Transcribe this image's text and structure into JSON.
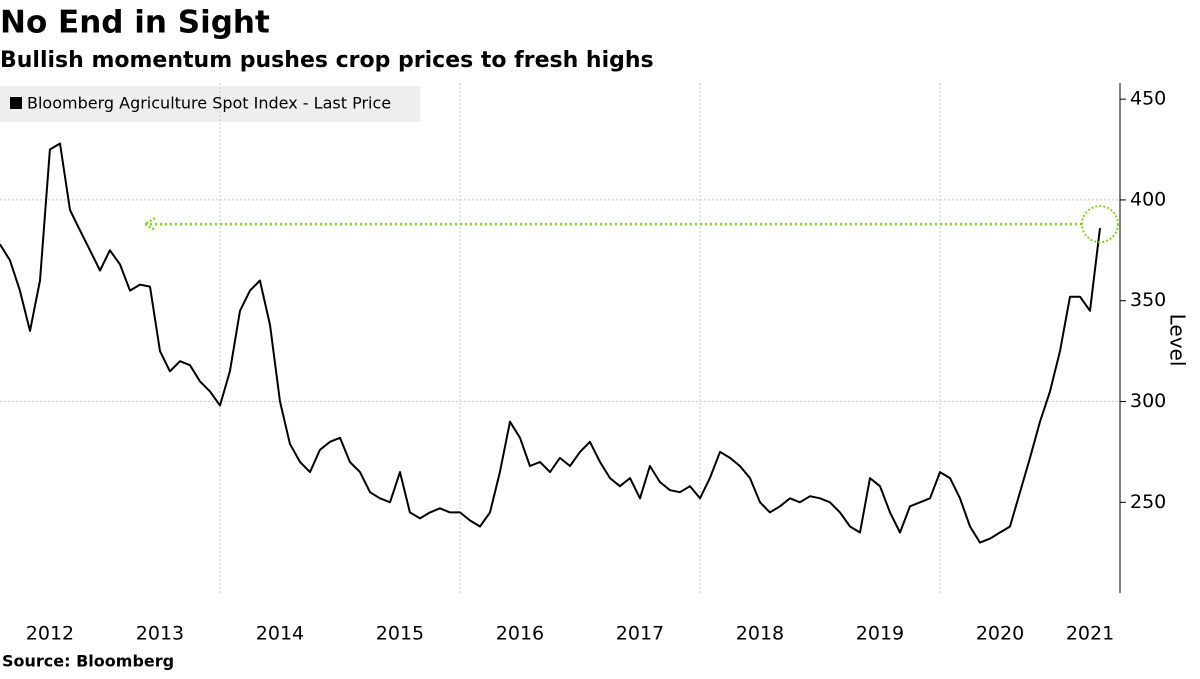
{
  "chart_data": {
    "type": "line",
    "title": "No End in Sight",
    "subtitle": "Bullish momentum pushes crop prices to fresh highs",
    "y_label": "Level",
    "source": "Source: Bloomberg",
    "x": [
      2012.167,
      2012.25,
      2012.333,
      2012.417,
      2012.5,
      2012.583,
      2012.667,
      2012.75,
      2012.833,
      2012.917,
      2013.0,
      2013.083,
      2013.167,
      2013.25,
      2013.333,
      2013.417,
      2013.5,
      2013.583,
      2013.667,
      2013.75,
      2013.833,
      2013.917,
      2014.0,
      2014.083,
      2014.167,
      2014.25,
      2014.333,
      2014.417,
      2014.5,
      2014.583,
      2014.667,
      2014.75,
      2014.833,
      2014.917,
      2015.0,
      2015.083,
      2015.167,
      2015.25,
      2015.333,
      2015.417,
      2015.5,
      2015.583,
      2015.667,
      2015.75,
      2015.833,
      2015.917,
      2016.0,
      2016.083,
      2016.167,
      2016.25,
      2016.333,
      2016.417,
      2016.5,
      2016.583,
      2016.667,
      2016.75,
      2016.833,
      2016.917,
      2017.0,
      2017.083,
      2017.167,
      2017.25,
      2017.333,
      2017.417,
      2017.5,
      2017.583,
      2017.667,
      2017.75,
      2017.833,
      2017.917,
      2018.0,
      2018.083,
      2018.167,
      2018.25,
      2018.333,
      2018.417,
      2018.5,
      2018.583,
      2018.667,
      2018.75,
      2018.833,
      2018.917,
      2019.0,
      2019.083,
      2019.167,
      2019.25,
      2019.333,
      2019.417,
      2019.5,
      2019.583,
      2019.667,
      2019.75,
      2019.833,
      2019.917,
      2020.0,
      2020.083,
      2020.167,
      2020.25,
      2020.333,
      2020.417,
      2020.5,
      2020.583,
      2020.667,
      2020.75,
      2020.833,
      2020.917,
      2021.0,
      2021.083,
      2021.167,
      2021.25,
      2021.333
    ],
    "series": [
      {
        "name": "Bloomberg Agriculture Spot Index - Last Price",
        "color": "#000000",
        "values": [
          378,
          370,
          355,
          335,
          360,
          425,
          428,
          395,
          385,
          375,
          365,
          375,
          368,
          355,
          358,
          357,
          325,
          315,
          320,
          318,
          310,
          305,
          298,
          315,
          345,
          355,
          360,
          338,
          300,
          279,
          270,
          265,
          276,
          280,
          282,
          270,
          265,
          255,
          252,
          250,
          265,
          245,
          242,
          245,
          247,
          245,
          245,
          241,
          238,
          245,
          265,
          290,
          282,
          268,
          270,
          265,
          272,
          268,
          275,
          280,
          270,
          262,
          258,
          262,
          252,
          268,
          260,
          256,
          255,
          258,
          252,
          262,
          275,
          272,
          268,
          262,
          250,
          245,
          248,
          252,
          250,
          253,
          252,
          250,
          245,
          238,
          235,
          262,
          258,
          245,
          235,
          248,
          250,
          252,
          265,
          262,
          252,
          238,
          230,
          232,
          235,
          238,
          255,
          272,
          290,
          305,
          325,
          352,
          352,
          345,
          386
        ]
      }
    ],
    "xlim": [
      2012.167,
      2021.5
    ],
    "xticks": [
      2012,
      2013,
      2014,
      2015,
      2016,
      2017,
      2018,
      2019,
      2020,
      2021
    ],
    "ylim": [
      205,
      458
    ],
    "yticks": [
      250,
      300,
      350,
      400,
      450
    ],
    "xgrid_every": 2,
    "ygrid_every": 100,
    "reference": {
      "value": 388,
      "x_from": 2013.375,
      "x_to": 2021.333,
      "color": "#7ed321"
    }
  }
}
